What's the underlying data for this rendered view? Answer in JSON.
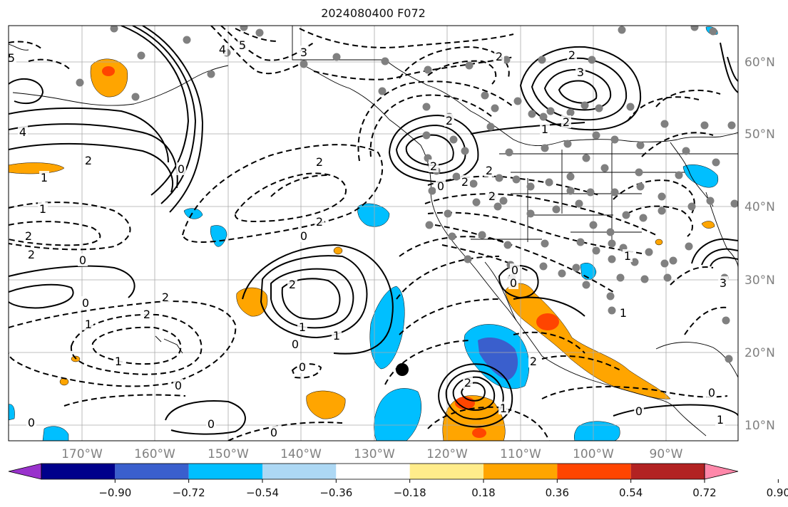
{
  "title": "2024080400 F072",
  "map": {
    "lat_labels": [
      "60°N",
      "50°N",
      "40°N",
      "30°N",
      "20°N",
      "10°N"
    ],
    "lon_labels": [
      "170°W",
      "160°W",
      "150°W",
      "140°W",
      "130°W",
      "120°W",
      "110°W",
      "100°W",
      "90°W"
    ],
    "tick_color": "#808080",
    "station_color": "#808080",
    "marker_color": "#000000"
  },
  "colorbar": {
    "ticks": [
      "−0.90",
      "−0.72",
      "−0.54",
      "−0.36",
      "−0.18",
      "0.18",
      "0.36",
      "0.54",
      "0.72",
      "0.90"
    ],
    "colors": [
      "#9932cc",
      "#00008b",
      "#3a5fcd",
      "#00bfff",
      "#add8f4",
      "#ffffff",
      "#ffec8b",
      "#ffa500",
      "#ff4500",
      "#b22222",
      "#ff88aa"
    ]
  },
  "contour_labels": {
    "solid": [
      "5",
      "4",
      "2",
      "1",
      "0",
      "2",
      "2",
      "1",
      "0",
      "0",
      "0",
      "1",
      "2",
      "2",
      "3",
      "1",
      "2",
      "0",
      "2",
      "1",
      "0",
      "3",
      "0",
      "0",
      "1",
      "1"
    ],
    "dashed": [
      "5",
      "3",
      "4",
      "2",
      "2",
      "2",
      "1",
      "2",
      "1",
      "0",
      "0",
      "2",
      "1",
      "2",
      "2",
      "2",
      "2",
      "1",
      "0",
      "0",
      "0",
      "0",
      "2",
      "2",
      "1",
      "0"
    ]
  }
}
